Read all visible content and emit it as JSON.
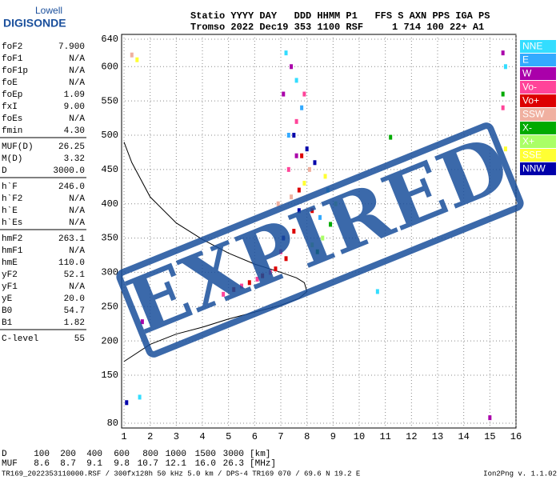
{
  "header": {
    "logo_top": "Lowell",
    "logo_bottom": "DIGISONDE",
    "line1": "Statio YYYY DAY   DDD HHMM P1   FFS S AXN PPS IGA PS",
    "line2": "Tromso 2022 Dec19 353 1100 RSF     1 714 100 22+ A1"
  },
  "parameters": [
    [
      {
        "name": "foF2",
        "value": "7.900"
      },
      {
        "name": "foF1",
        "value": "N/A"
      },
      {
        "name": "foF1p",
        "value": "N/A"
      },
      {
        "name": "foE",
        "value": "N/A"
      },
      {
        "name": "foEp",
        "value": "1.09"
      },
      {
        "name": "fxI",
        "value": "9.00"
      },
      {
        "name": "foEs",
        "value": "N/A"
      },
      {
        "name": "fmin",
        "value": "4.30"
      }
    ],
    [
      {
        "name": "MUF(D)",
        "value": "26.25"
      },
      {
        "name": "M(D)",
        "value": "3.32"
      },
      {
        "name": "D",
        "value": "3000.0"
      }
    ],
    [
      {
        "name": "h`F",
        "value": "246.0"
      },
      {
        "name": "h`F2",
        "value": "N/A"
      },
      {
        "name": "h`E",
        "value": "N/A"
      },
      {
        "name": "h`Es",
        "value": "N/A"
      }
    ],
    [
      {
        "name": "hmF2",
        "value": "263.1"
      },
      {
        "name": "hmF1",
        "value": "N/A"
      },
      {
        "name": "hmE",
        "value": "110.0"
      },
      {
        "name": "yF2",
        "value": "52.1"
      },
      {
        "name": "yF1",
        "value": "N/A"
      },
      {
        "name": "yE",
        "value": "20.0"
      },
      {
        "name": "B0",
        "value": "54.7"
      },
      {
        "name": "B1",
        "value": "1.82"
      }
    ],
    [
      {
        "name": "C-level",
        "value": "55"
      }
    ]
  ],
  "chart_data": {
    "type": "scatter",
    "xlim": [
      1,
      16
    ],
    "ylim": [
      80,
      640
    ],
    "xticks": [
      1,
      2,
      3,
      4,
      5,
      6,
      7,
      8,
      9,
      10,
      11,
      12,
      13,
      14,
      15,
      16
    ],
    "yticks": [
      80,
      150,
      200,
      250,
      300,
      350,
      400,
      450,
      500,
      550,
      600,
      640
    ],
    "grid": true,
    "legend": "right",
    "series": [
      {
        "name": "NNE",
        "color": "#33ddff",
        "x": [
          7.2,
          7.6,
          8.8,
          10.7,
          1.6,
          15.6
        ],
        "y": [
          620,
          580,
          420,
          272,
          118,
          600
        ]
      },
      {
        "name": "E",
        "color": "#33aaff",
        "x": [
          7.3,
          7.8,
          8.5
        ],
        "y": [
          500,
          540,
          380
        ]
      },
      {
        "name": "W",
        "color": "#aa00aa",
        "x": [
          7.1,
          7.4,
          7.6,
          15.5,
          15,
          1.7
        ],
        "y": [
          560,
          600,
          470,
          620,
          88,
          228
        ]
      },
      {
        "name": "Vo-",
        "color": "#ff4499",
        "x": [
          4.8,
          5.5,
          6.1,
          6.6,
          7.0,
          7.3,
          7.6,
          7.9,
          15.5
        ],
        "y": [
          268,
          280,
          290,
          300,
          330,
          450,
          520,
          560,
          540
        ]
      },
      {
        "name": "Vo+",
        "color": "#dd0000",
        "x": [
          5.2,
          5.8,
          6.3,
          6.8,
          7.2,
          7.5,
          7.7,
          7.8,
          8.2
        ],
        "y": [
          275,
          285,
          295,
          305,
          320,
          360,
          420,
          470,
          390
        ]
      },
      {
        "name": "SSW",
        "color": "#f0b0a0",
        "x": [
          7.4,
          8.1,
          6.9,
          1.3
        ],
        "y": [
          410,
          450,
          400,
          617
        ]
      },
      {
        "name": "X-",
        "color": "#00aa00",
        "x": [
          8.4,
          8.9,
          11.2,
          15.5
        ],
        "y": [
          330,
          370,
          497,
          560
        ]
      },
      {
        "name": "X+",
        "color": "#aaff66",
        "x": [
          8.6,
          9.1,
          8.2
        ],
        "y": [
          350,
          400,
          340
        ]
      },
      {
        "name": "SSE",
        "color": "#ffff33",
        "x": [
          7.9,
          8.7,
          1.5,
          15.6
        ],
        "y": [
          430,
          440,
          610,
          480
        ]
      },
      {
        "name": "NNW",
        "color": "#0000aa",
        "x": [
          7.5,
          8.0,
          8.3,
          7.7,
          7.1,
          1.1
        ],
        "y": [
          500,
          480,
          460,
          390,
          350,
          110
        ]
      }
    ],
    "profile": {
      "color": "#000000",
      "x": [
        1,
        2,
        3,
        4,
        5,
        6,
        7,
        7.7,
        8,
        7.9,
        7.6,
        7,
        6,
        5,
        4,
        3,
        2,
        1.3,
        1
      ],
      "y": [
        170,
        195,
        210,
        220,
        232,
        242,
        252,
        262,
        272,
        285,
        292,
        300,
        312,
        328,
        348,
        372,
        410,
        460,
        490
      ]
    },
    "stamp": {
      "text": "EXPIRED",
      "color": "#1a4f9c"
    }
  },
  "muf_table": {
    "rows": [
      [
        "D",
        "100",
        "200",
        "400",
        "600",
        "800",
        "1000",
        "1500",
        "3000",
        "[km]"
      ],
      [
        "MUF",
        "8.6",
        "8.7",
        "9.1",
        "9.8",
        "10.7",
        "12.1",
        "16.0",
        "26.3",
        "[MHz]"
      ]
    ]
  },
  "footer": {
    "file": "TR169_2022353110000.RSF / 300fx128h 50 kHz 5.0 km / DPS-4 TR169 070 / 69.6 N 19.2 E",
    "version": "Ion2Png v. 1.1.02"
  }
}
